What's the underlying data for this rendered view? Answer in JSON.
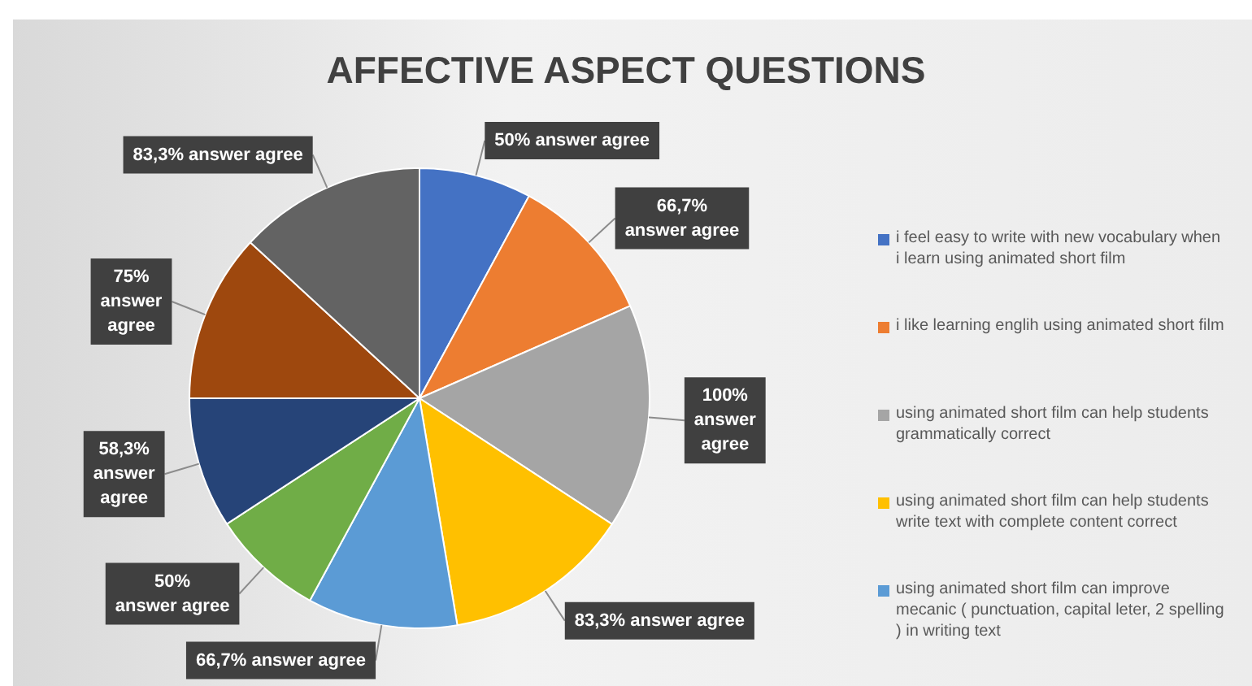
{
  "chart_data": {
    "type": "pie",
    "title": "AFFECTIVE ASPECT QUESTIONS",
    "categories": [
      "i feel easy to write with new vocabulary when i learn using animated short film",
      "i like learning englih using animated short film",
      "using animated short film can help students grammatically correct",
      "using animated short film can help students write text with complete content correct",
      "using animated short film can improve mecanic ( punctuation, capital leter, 2 spelling ) in writing text",
      null,
      null,
      null,
      null
    ],
    "values": [
      50,
      66.7,
      100,
      83.3,
      66.7,
      50,
      58.3,
      75,
      83.3
    ],
    "value_labels": [
      "50% answer agree",
      "66,7% answer agree",
      "100% answer agree",
      "83,3% answer agree",
      "66,7% answer agree",
      "50% answer agree",
      "58,3% answer agree",
      "75% answer agree",
      "83,3% answer agree"
    ],
    "colors": [
      "#4472c4",
      "#ed7d31",
      "#a5a5a5",
      "#ffc000",
      "#5b9bd5",
      "#70ad47",
      "#264478",
      "#9e480e",
      "#636363"
    ],
    "legend": "right"
  }
}
